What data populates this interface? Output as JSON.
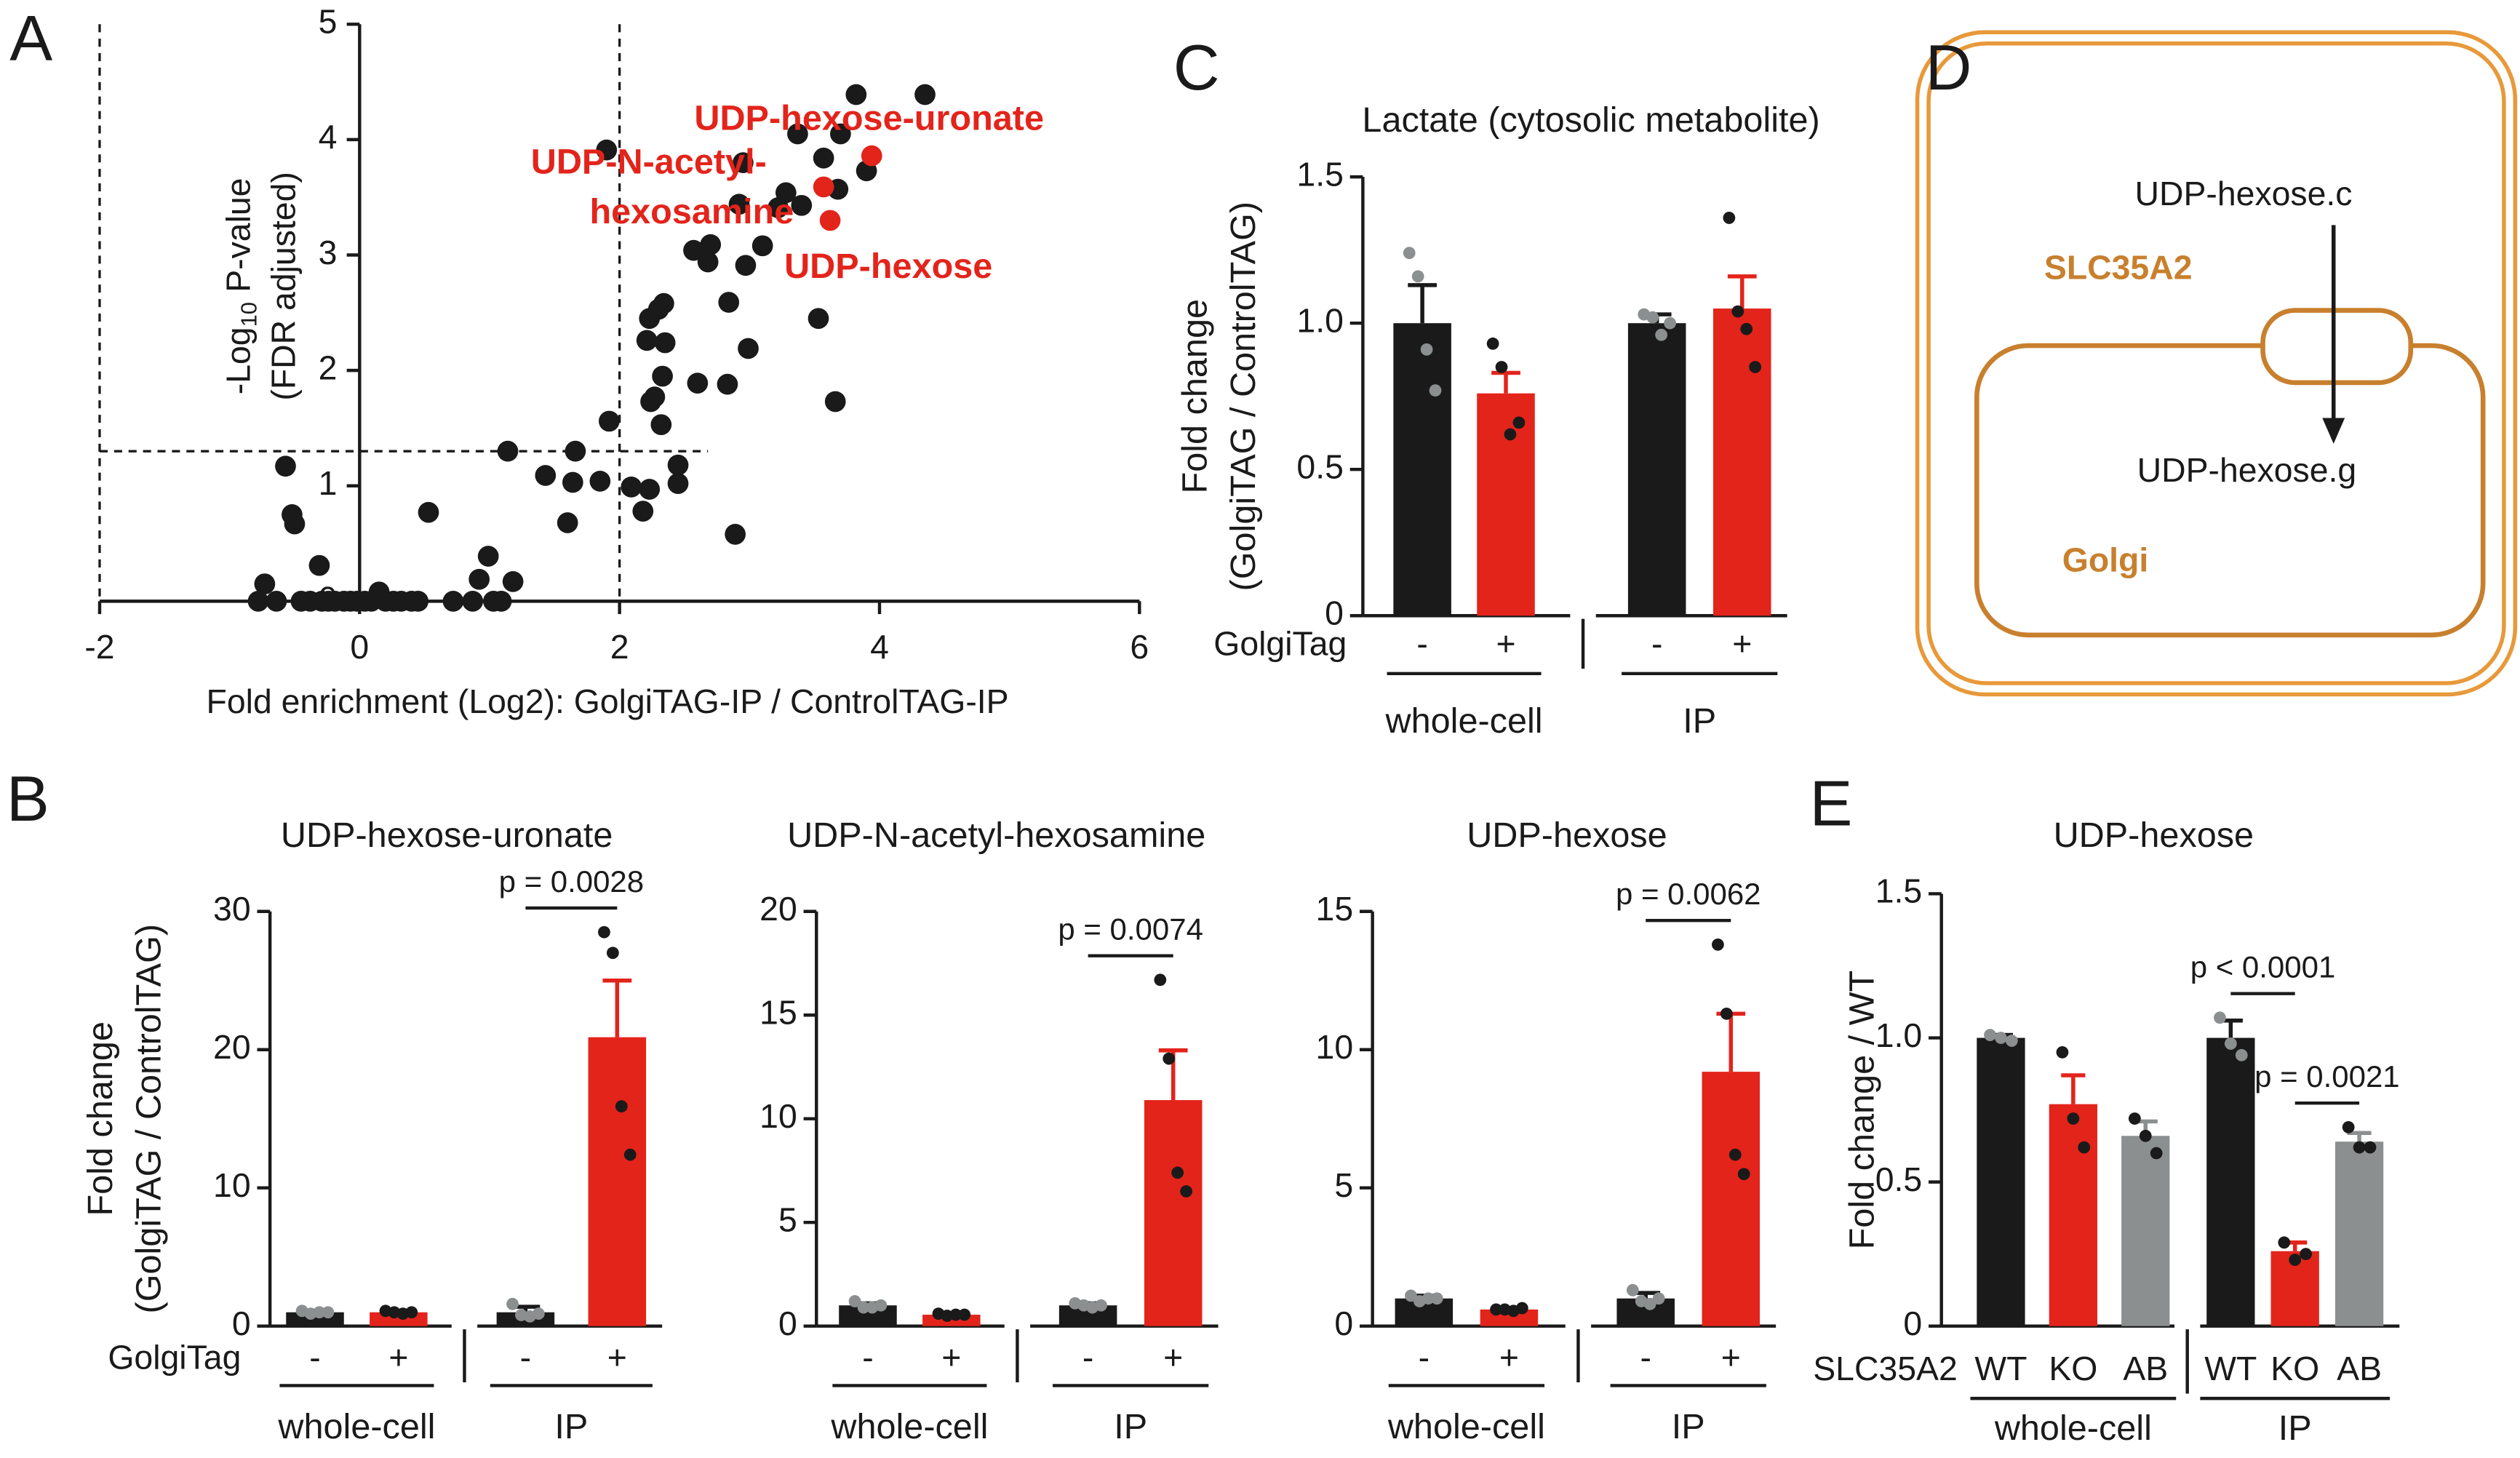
{
  "chart_data": [
    {
      "panel": "A",
      "type": "scatter",
      "xlabel": "Fold enrichment (Log2): GolgiTAG-IP / ControlTAG-IP",
      "ylabel": [
        "-Log",
        "10",
        "P-value"
      ],
      "ylabel2": "(FDR adjusted)",
      "xlim": [
        -2,
        6
      ],
      "ylim": [
        0,
        5
      ],
      "xticks": [
        -2,
        0,
        2,
        4,
        6
      ],
      "yticks": [
        0,
        1,
        2,
        3,
        4,
        5
      ],
      "threshold_x": [
        -2,
        2
      ],
      "threshold_y": 1.3,
      "color": "#1a1a1a",
      "x": [
        -0.78,
        -0.73,
        -0.64,
        -0.57,
        -0.52,
        -0.5,
        -0.45,
        -0.38,
        -0.31,
        -0.29,
        -0.24,
        -0.19,
        -0.12,
        -0.07,
        -0.02,
        0.04,
        0.09,
        0.15,
        0.2,
        0.26,
        0.32,
        0.4,
        0.45,
        0.53,
        0.72,
        0.87,
        0.92,
        0.99,
        1.03,
        1.09,
        1.18,
        1.14,
        1.43,
        1.6,
        1.64,
        1.66,
        1.85,
        1.92,
        1.9,
        2.09,
        2.18,
        2.23,
        2.21,
        2.23,
        2.24,
        2.27,
        2.3,
        2.32,
        2.33,
        2.34,
        2.35,
        2.45,
        2.45,
        2.57,
        2.6,
        2.68,
        2.7,
        2.83,
        2.89,
        2.92,
        2.95,
        2.84,
        2.99,
        2.97,
        3.1,
        3.22,
        3.28,
        3.37,
        3.4,
        3.53,
        3.57,
        3.66,
        3.68,
        3.7,
        3.82,
        3.9,
        4.35
      ],
      "y": [
        0,
        0.15,
        0,
        1.17,
        0.75,
        0.67,
        0,
        0,
        0.31,
        0,
        0,
        0,
        0,
        0,
        0,
        0,
        0,
        0.08,
        0,
        0,
        0,
        0,
        0,
        0.77,
        0,
        0,
        0.19,
        0.39,
        0,
        0,
        0.17,
        1.3,
        1.09,
        0.68,
        1.03,
        1.3,
        1.04,
        1.56,
        3.91,
        0.99,
        0.78,
        0.97,
        2.26,
        2.45,
        1.73,
        1.77,
        2.53,
        1.53,
        1.95,
        2.58,
        2.24,
        1.02,
        1.18,
        3.04,
        1.89,
        2.94,
        3.09,
        1.88,
        0.58,
        3.44,
        3.8,
        2.59,
        2.19,
        2.91,
        3.08,
        3.41,
        3.54,
        4.05,
        3.43,
        2.45,
        3.84,
        1.73,
        3.57,
        4.05,
        4.39,
        3.73,
        4.39
      ],
      "highlight": {
        "color": "#e3241b",
        "labels": [
          "UDP-hexose-uronate",
          [
            "UDP-N-acetyl-",
            "hexosamine"
          ],
          "UDP-hexose"
        ],
        "x": [
          3.94,
          3.57,
          3.62
        ],
        "y": [
          3.86,
          3.59,
          3.3
        ]
      }
    },
    {
      "panel": "B",
      "type": "bar",
      "title": "UDP-hexose-uronate",
      "ylabel": [
        "Fold change",
        "(GolgiTAG / ControlTAG)"
      ],
      "ylim": [
        0,
        30
      ],
      "yticks": [
        0,
        10,
        20,
        30
      ],
      "row_label": "GolgiTag",
      "categories": [
        "-",
        "+",
        "-",
        "+"
      ],
      "groups": [
        "whole-cell",
        "IP"
      ],
      "values": [
        1.0,
        1.0,
        1.0,
        20.9
      ],
      "errors": [
        0.1,
        0.1,
        0.4,
        4.1
      ],
      "colors": [
        "#1a1a1a",
        "#e3241b",
        "#1a1a1a",
        "#e3241b"
      ],
      "point_colors": [
        "#8c8f90",
        "#1a1a1a",
        "#8c8f90",
        "#1a1a1a"
      ],
      "points": [
        [
          1.1,
          0.9,
          1.0,
          1.0
        ],
        [
          1.1,
          1.0,
          0.9,
          1.0
        ],
        [
          1.6,
          0.8,
          0.7,
          0.9
        ],
        [
          28.5,
          27.0,
          15.9,
          12.4
        ]
      ],
      "comparisons": [
        {
          "bars": [
            2,
            3
          ],
          "label": "p = 0.0028"
        }
      ]
    },
    {
      "type": "bar",
      "title": "UDP-N-acetyl-hexosamine",
      "ylim": [
        0,
        20
      ],
      "yticks": [
        0,
        5,
        10,
        15,
        20
      ],
      "categories": [
        "-",
        "+",
        "-",
        "+"
      ],
      "groups": [
        "whole-cell",
        "IP"
      ],
      "values": [
        1.0,
        0.55,
        1.0,
        10.9
      ],
      "errors": [
        0.1,
        0.05,
        0.1,
        2.4
      ],
      "colors": [
        "#1a1a1a",
        "#e3241b",
        "#1a1a1a",
        "#e3241b"
      ],
      "point_colors": [
        "#8c8f90",
        "#1a1a1a",
        "#8c8f90",
        "#1a1a1a"
      ],
      "points": [
        [
          1.2,
          0.9,
          0.9,
          1.0
        ],
        [
          0.6,
          0.5,
          0.55,
          0.55
        ],
        [
          1.1,
          1.0,
          0.9,
          1.0
        ],
        [
          16.7,
          12.9,
          7.4,
          6.5
        ]
      ],
      "comparisons": [
        {
          "bars": [
            2,
            3
          ],
          "label": "p = 0.0074"
        }
      ]
    },
    {
      "type": "bar",
      "title": "UDP-hexose",
      "ylim": [
        0,
        15
      ],
      "yticks": [
        0,
        5,
        10,
        15
      ],
      "categories": [
        "-",
        "+",
        "-",
        "+"
      ],
      "groups": [
        "whole-cell",
        "IP"
      ],
      "values": [
        1.0,
        0.6,
        1.0,
        9.2
      ],
      "errors": [
        0.1,
        0.05,
        0.2,
        2.1
      ],
      "colors": [
        "#1a1a1a",
        "#e3241b",
        "#1a1a1a",
        "#e3241b"
      ],
      "point_colors": [
        "#8c8f90",
        "#1a1a1a",
        "#8c8f90",
        "#1a1a1a"
      ],
      "points": [
        [
          1.1,
          0.9,
          1.0,
          1.0
        ],
        [
          0.6,
          0.6,
          0.55,
          0.65
        ],
        [
          1.3,
          0.9,
          0.8,
          1.0
        ],
        [
          13.8,
          11.3,
          6.2,
          5.5
        ]
      ],
      "comparisons": [
        {
          "bars": [
            2,
            3
          ],
          "label": "p = 0.0062"
        }
      ]
    },
    {
      "panel": "C",
      "type": "bar",
      "title": "Lactate (cytosolic metabolite)",
      "ylabel": [
        "Fold change",
        "(GolgiTAG / ControlTAG)"
      ],
      "ylim": [
        0,
        1.5
      ],
      "yticks": [
        0,
        0.5,
        {
          "value": 1,
          "label": "1.0"
        },
        1.5
      ],
      "row_label": "GolgiTag",
      "categories": [
        "-",
        "+",
        "-",
        "+"
      ],
      "groups": [
        "whole-cell",
        "IP"
      ],
      "values": [
        1.0,
        0.76,
        1.0,
        1.05
      ],
      "errors": [
        0.13,
        0.07,
        0.03,
        0.11
      ],
      "colors": [
        "#1a1a1a",
        "#e3241b",
        "#1a1a1a",
        "#e3241b"
      ],
      "point_colors": [
        "#8c8f90",
        "#1a1a1a",
        "#8c8f90",
        "#1a1a1a"
      ],
      "points": [
        [
          1.24,
          1.16,
          0.91,
          0.77
        ],
        [
          0.93,
          0.85,
          0.62,
          0.66
        ],
        [
          1.03,
          1.02,
          0.96,
          1.0
        ],
        [
          1.36,
          1.04,
          0.98,
          0.85
        ]
      ]
    },
    {
      "panel": "E",
      "type": "bar",
      "title": "UDP-hexose",
      "ylabel": [
        "Fold change / WT"
      ],
      "ylim": [
        0,
        1.5
      ],
      "yticks": [
        0,
        0.5,
        {
          "value": 1,
          "label": "1.0"
        },
        1.5
      ],
      "row_label": "SLC35A2",
      "categories": [
        "WT",
        "KO",
        "AB",
        "WT",
        "KO",
        "AB"
      ],
      "groups": [
        "whole-cell",
        "IP"
      ],
      "values": [
        1.0,
        0.77,
        0.66,
        1.0,
        0.26,
        0.64
      ],
      "errors": [
        0.01,
        0.1,
        0.05,
        0.06,
        0.03,
        0.03
      ],
      "colors": [
        "#1a1a1a",
        "#e3241b",
        "#8c8f90",
        "#1a1a1a",
        "#e3241b",
        "#8c8f90"
      ],
      "point_colors": [
        "#8c8f90",
        "#1a1a1a",
        "#1a1a1a",
        "#8c8f90",
        "#1a1a1a",
        "#1a1a1a"
      ],
      "points": [
        [
          1.01,
          1.0,
          0.99
        ],
        [
          0.95,
          0.72,
          0.62
        ],
        [
          0.72,
          0.66,
          0.6
        ],
        [
          1.07,
          0.98,
          0.94
        ],
        [
          0.29,
          0.23,
          0.25
        ],
        [
          0.69,
          0.62,
          0.62
        ]
      ],
      "comparisons": [
        {
          "bars": [
            3,
            4
          ],
          "label": "p < 0.0001"
        },
        {
          "bars": [
            4,
            5
          ],
          "label": "p = 0.0021"
        }
      ]
    }
  ],
  "diagram": {
    "panel": "D",
    "source": "UDP-hexose.c",
    "transporter": "SLC35A2",
    "target": "UDP-hexose.g",
    "compartment": "Golgi"
  }
}
